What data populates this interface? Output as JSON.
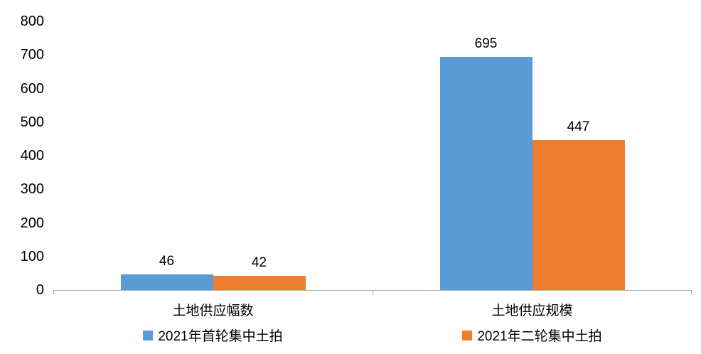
{
  "chart_data": {
    "type": "bar",
    "title": "",
    "categories": [
      "土地供应幅数",
      "土地供应规模"
    ],
    "series": [
      {
        "name": "2021年首轮集中土拍",
        "color": "#5B9BD5",
        "values": [
          46,
          695
        ]
      },
      {
        "name": "2021年二轮集中土拍",
        "color": "#ED7D31",
        "values": [
          42,
          447
        ]
      }
    ],
    "xlabel": "",
    "ylabel": "",
    "ylim": [
      0,
      800
    ],
    "yticks": [
      0,
      100,
      200,
      300,
      400,
      500,
      600,
      700,
      800
    ],
    "grid": false,
    "legend_position": "bottom",
    "axis_color": "#ababab",
    "background_color": "#ffffff",
    "value_labels_shown": true
  }
}
